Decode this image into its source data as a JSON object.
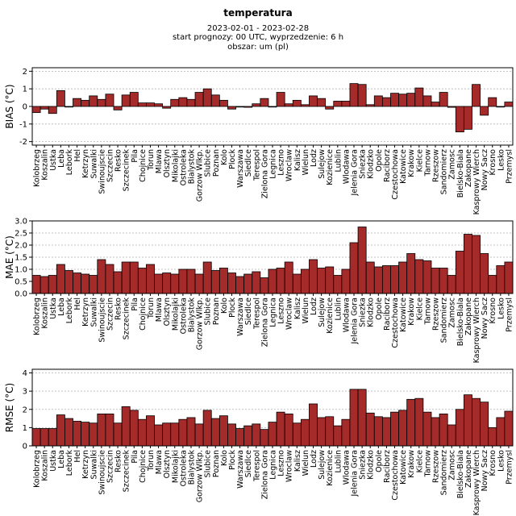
{
  "header": {
    "title": "temperatura",
    "period": "2023-02-01 - 2023-02-28",
    "forecast": "start prognozy: 00 UTC, wyprzedzenie: 6 h",
    "area": "obszar: um (pl)"
  },
  "colors": {
    "bar": "#a52a2a",
    "bar_edge": "#000000",
    "grid": "#b0b0b0"
  },
  "chart_data": [
    {
      "type": "bar",
      "ylabel": "BIAS (°C)",
      "ylim": [
        -2.2,
        2.2
      ],
      "yticks": [
        -2,
        -1,
        0,
        1,
        2
      ],
      "grid": true,
      "categories": [
        "Kolobrzeg",
        "Koszalin",
        "Ustka",
        "Leba",
        "Lebork",
        "Hel",
        "Ketrzyn",
        "Suwalki",
        "Swinoujscie",
        "Szczecin",
        "Resko",
        "Szczecinek",
        "Pila",
        "Chojnice",
        "Torun",
        "Mlawa",
        "Olsztyn",
        "Mikolajki",
        "Ostroleka",
        "Bialystok",
        "Gorzow Wlkp.",
        "Slubice",
        "Poznan",
        "Kolo",
        "Plock",
        "Warszawa",
        "Siedlce",
        "Terespol",
        "Zielona Gora",
        "Legnica",
        "Leszno",
        "Wroclaw",
        "Kalisz",
        "Wielun",
        "Lodz",
        "Sulejow",
        "Kozienice",
        "Lublin",
        "Wlodawa",
        "Jelenia Gora",
        "Sniezka",
        "Klodzko",
        "Opole",
        "Raciborz",
        "Czestochowa",
        "Katowice",
        "Krakow",
        "Kielce",
        "Tarnow",
        "Rzeszow",
        "Sandomierz",
        "Zamosc",
        "Bielsko-Biala",
        "Zakopane",
        "Kasprowy Wierch",
        "Nowy Sacz",
        "Krosno",
        "Lesko",
        "Przemysl"
      ],
      "values": [
        -0.35,
        -0.15,
        -0.4,
        0.9,
        0.0,
        0.45,
        0.35,
        0.6,
        0.4,
        0.7,
        -0.2,
        0.65,
        0.8,
        0.2,
        0.2,
        0.15,
        -0.1,
        0.4,
        0.5,
        0.4,
        0.8,
        1.0,
        0.65,
        0.35,
        -0.15,
        0.0,
        -0.05,
        0.15,
        0.45,
        0.0,
        0.8,
        0.15,
        0.35,
        0.1,
        0.6,
        0.45,
        -0.15,
        0.3,
        0.3,
        1.3,
        1.25,
        0.1,
        0.6,
        0.5,
        0.75,
        0.7,
        0.75,
        1.05,
        0.6,
        0.25,
        0.8,
        -0.05,
        -1.45,
        -1.3,
        1.25,
        -0.5,
        0.5,
        0.0,
        0.25
      ]
    },
    {
      "type": "bar",
      "ylabel": "MAE (°C)",
      "ylim": [
        0,
        3.0
      ],
      "yticks": [
        0.0,
        0.5,
        1.0,
        1.5,
        2.0,
        2.5,
        3.0
      ],
      "grid": true,
      "categories": [
        "Kolobrzeg",
        "Koszalin",
        "Ustka",
        "Leba",
        "Lebork",
        "Hel",
        "Ketrzyn",
        "Suwalki",
        "Swinoujscie",
        "Szczecin",
        "Resko",
        "Szczecinek",
        "Pila",
        "Chojnice",
        "Torun",
        "Mlawa",
        "Olsztyn",
        "Mikolajki",
        "Ostroleka",
        "Bialystok",
        "Gorzow Wlkp.",
        "Slubice",
        "Poznan",
        "Kolo",
        "Plock",
        "Warszawa",
        "Siedlce",
        "Terespol",
        "Zielona Gora",
        "Legnica",
        "Leszno",
        "Wroclaw",
        "Kalisz",
        "Wielun",
        "Lodz",
        "Sulejow",
        "Kozienice",
        "Lublin",
        "Wlodawa",
        "Jelenia Gora",
        "Sniezka",
        "Klodzko",
        "Opole",
        "Raciborz",
        "Czestochowa",
        "Katowice",
        "Krakow",
        "Kielce",
        "Tarnow",
        "Rzeszow",
        "Sandomierz",
        "Zamosc",
        "Bielsko-Biala",
        "Zakopane",
        "Kasprowy Wierch",
        "Nowy Sacz",
        "Krosno",
        "Lesko",
        "Przemysl"
      ],
      "values": [
        0.75,
        0.7,
        0.75,
        1.2,
        0.95,
        0.85,
        0.8,
        0.75,
        1.4,
        1.2,
        0.9,
        1.3,
        1.3,
        1.05,
        1.2,
        0.8,
        0.85,
        0.8,
        1.0,
        1.0,
        0.8,
        1.3,
        0.95,
        1.05,
        0.85,
        0.7,
        0.8,
        0.9,
        0.65,
        1.0,
        1.05,
        1.3,
        0.8,
        1.0,
        1.4,
        1.05,
        1.1,
        0.75,
        1.0,
        2.1,
        2.75,
        1.3,
        1.1,
        1.15,
        1.15,
        1.3,
        1.65,
        1.4,
        1.35,
        1.05,
        1.05,
        0.75,
        1.75,
        2.45,
        2.4,
        1.65,
        0.75,
        1.15,
        1.3
      ]
    },
    {
      "type": "bar",
      "ylabel": "RMSE (°C)",
      "ylim": [
        0,
        4.2
      ],
      "yticks": [
        0,
        1,
        2,
        3,
        4
      ],
      "grid": true,
      "categories": [
        "Kolobrzeg",
        "Koszalin",
        "Ustka",
        "Leba",
        "Lebork",
        "Hel",
        "Ketrzyn",
        "Suwalki",
        "Swinoujscie",
        "Szczecin",
        "Resko",
        "Szczecinek",
        "Pila",
        "Chojnice",
        "Torun",
        "Mlawa",
        "Olsztyn",
        "Mikolajki",
        "Ostroleka",
        "Bialystok",
        "Gorzow Wlkp.",
        "Slubice",
        "Poznan",
        "Kolo",
        "Plock",
        "Warszawa",
        "Siedlce",
        "Terespol",
        "Zielona Gora",
        "Legnica",
        "Leszno",
        "Wroclaw",
        "Kalisz",
        "Wielun",
        "Lodz",
        "Sulejow",
        "Kozienice",
        "Lublin",
        "Wlodawa",
        "Jelenia Gora",
        "Sniezka",
        "Klodzko",
        "Opole",
        "Raciborz",
        "Czestochowa",
        "Katowice",
        "Krakow",
        "Kielce",
        "Tarnow",
        "Rzeszow",
        "Sandomierz",
        "Zamosc",
        "Bielsko-Biala",
        "Zakopane",
        "Kasprowy Wierch",
        "Nowy Sacz",
        "Krosno",
        "Lesko",
        "Przemysl"
      ],
      "values": [
        0.95,
        0.95,
        0.95,
        1.7,
        1.5,
        1.35,
        1.3,
        1.25,
        1.75,
        1.75,
        1.25,
        2.15,
        1.95,
        1.45,
        1.65,
        1.15,
        1.25,
        1.25,
        1.45,
        1.55,
        1.2,
        1.95,
        1.5,
        1.65,
        1.2,
        0.95,
        1.1,
        1.2,
        0.9,
        1.3,
        1.85,
        1.75,
        1.25,
        1.45,
        2.3,
        1.55,
        1.6,
        1.1,
        1.45,
        3.1,
        3.1,
        1.8,
        1.6,
        1.55,
        1.85,
        1.95,
        2.55,
        2.6,
        1.85,
        1.55,
        1.75,
        1.15,
        2.0,
        2.8,
        2.6,
        2.4,
        1.0,
        1.55,
        1.9
      ]
    }
  ]
}
